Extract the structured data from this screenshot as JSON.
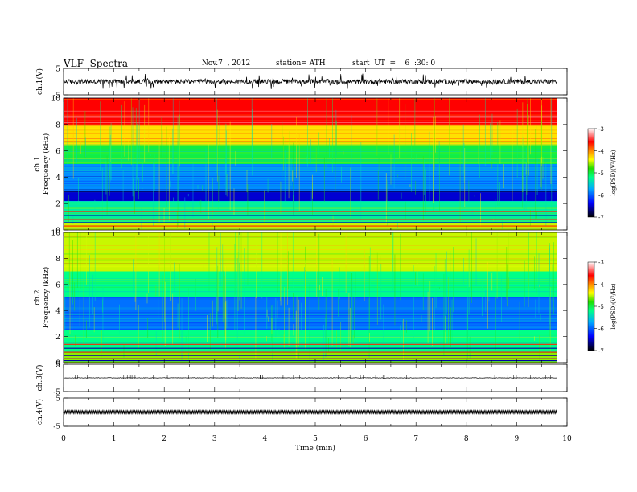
{
  "header": {
    "title": "VLF  Spectra",
    "date": "Nov.7  , 2012",
    "station": "station= ATH",
    "start": "start  UT  =    6  :30: 0"
  },
  "colorbar": {
    "label": "log(PSD)(V²/Hz)",
    "ticks": [
      "-3",
      "-4",
      "-5",
      "-6",
      "-7"
    ]
  },
  "chart_data": [
    {
      "type": "line",
      "name": "ch1-waveform",
      "ylabel": "ch.1(V)",
      "ylim": [
        -5,
        5
      ],
      "ytick_labels": [
        "5",
        "-5"
      ],
      "xlim": [
        0,
        10
      ],
      "baseline": 0,
      "amplitude_range": [
        -2,
        2
      ]
    },
    {
      "type": "heatmap",
      "name": "ch1-spectrogram",
      "ylabel_top": "ch.1",
      "ylabel": "Frequency  (kHz)",
      "ylim": [
        0,
        10
      ],
      "ytick_labels": [
        "10",
        "8",
        "6",
        "4",
        "2",
        "0"
      ],
      "xlim": [
        0,
        10
      ],
      "data_extent_min": 9.8,
      "color_scale": [
        -7,
        -3
      ],
      "bands": [
        {
          "f": [
            0,
            0.5
          ],
          "level": -4.5
        },
        {
          "f": [
            0.5,
            2.2
          ],
          "level": -5.3
        },
        {
          "f": [
            2.2,
            3.0
          ],
          "level": -6.5
        },
        {
          "f": [
            3.0,
            5.0
          ],
          "level": -5.9
        },
        {
          "f": [
            5.0,
            6.5
          ],
          "level": -5.0
        },
        {
          "f": [
            6.5,
            8.0
          ],
          "level": -4.3
        },
        {
          "f": [
            8.0,
            10.0
          ],
          "level": -3.6
        }
      ]
    },
    {
      "type": "heatmap",
      "name": "ch2-spectrogram",
      "ylabel_top": "ch.2",
      "ylabel": "Frequency  (kHz)",
      "ylim": [
        0,
        10
      ],
      "ytick_labels": [
        "10",
        "8",
        "6",
        "4",
        "2",
        "0"
      ],
      "xlim": [
        0,
        10
      ],
      "data_extent_min": 9.8,
      "color_scale": [
        -7,
        -3
      ],
      "bands": [
        {
          "f": [
            0,
            0.8
          ],
          "level": -4.6
        },
        {
          "f": [
            0.8,
            2.5
          ],
          "level": -5.2
        },
        {
          "f": [
            2.5,
            5.0
          ],
          "level": -6.0
        },
        {
          "f": [
            5.0,
            7.0
          ],
          "level": -5.2
        },
        {
          "f": [
            7.0,
            10.0
          ],
          "level": -4.5
        }
      ]
    },
    {
      "type": "line",
      "name": "ch3-waveform",
      "ylabel": "ch.3(V)",
      "ylim": [
        -5,
        5
      ],
      "ytick_labels": [
        "5",
        "-5"
      ],
      "xlim": [
        0,
        10
      ],
      "baseline": 0,
      "amplitude_range": [
        -0.2,
        0.2
      ]
    },
    {
      "type": "line",
      "name": "ch4-waveform",
      "ylabel": "ch.4(V)",
      "ylim": [
        -5,
        5
      ],
      "ytick_labels": [
        "5",
        "-5"
      ],
      "xlim": [
        0,
        10
      ],
      "baseline": 0,
      "amplitude_range": [
        -0.6,
        0.6
      ],
      "xlabel": "Time  (min)",
      "xtick_labels": [
        "0",
        "1",
        "2",
        "3",
        "4",
        "5",
        "6",
        "7",
        "8",
        "9",
        "10"
      ]
    }
  ]
}
